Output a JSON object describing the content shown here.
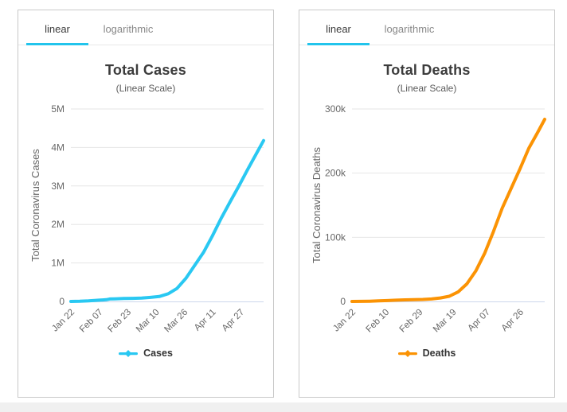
{
  "theme": {
    "accent_color": "#22C4EC",
    "card_border_color": "#c9c9c9",
    "grid_color": "#e6e6e6",
    "axis_line_color": "#ccd6eb",
    "label_color": "#666666",
    "title_color": "#3c3c3c",
    "page_strip_color": "#f0f0f0"
  },
  "tabs": {
    "items": [
      {
        "label": "linear",
        "active": true
      },
      {
        "label": "logarithmic",
        "active": false
      }
    ]
  },
  "chart_data": [
    {
      "type": "line",
      "title": "Total Cases",
      "subtitle": "(Linear Scale)",
      "ylabel": "Total Coronavirus Cases",
      "xlabel": "",
      "series_name": "Cases",
      "legend_marker_icon": "line-diamond-marker-icon",
      "legend_position": "bottom",
      "grid": true,
      "color": "#29C8F2",
      "ylim": [
        0,
        5000000
      ],
      "y_tick_values": [
        0,
        1000000,
        2000000,
        3000000,
        4000000,
        5000000
      ],
      "y_tick_labels": [
        "0",
        "1M",
        "2M",
        "3M",
        "4M",
        "5M"
      ],
      "x_tick_labels": [
        "Jan 22",
        "Feb 07",
        "Feb 23",
        "Mar 10",
        "Mar 26",
        "Apr 11",
        "Apr 27"
      ],
      "x_tick_days": [
        0,
        16,
        32,
        48,
        64,
        80,
        96
      ],
      "x_range_days": [
        0,
        109
      ],
      "points_dates": [
        "Jan 22",
        "Jan 27",
        "Feb 01",
        "Feb 06",
        "Feb 11",
        "Feb 13",
        "Feb 16",
        "Feb 21",
        "Feb 26",
        "Mar 02",
        "Mar 07",
        "Mar 12",
        "Mar 17",
        "Mar 22",
        "Mar 27",
        "Apr 01",
        "Apr 06",
        "Apr 11",
        "Apr 16",
        "Apr 21",
        "Apr 26",
        "May 01",
        "May 06",
        "May 10"
      ],
      "points_days": [
        0,
        5,
        10,
        15,
        20,
        22,
        25,
        30,
        35,
        40,
        45,
        50,
        55,
        60,
        65,
        70,
        75,
        80,
        85,
        90,
        95,
        100,
        105,
        109
      ],
      "points_values": [
        580,
        3200,
        14600,
        31500,
        46000,
        64400,
        69200,
        78000,
        81500,
        87700,
        105800,
        128300,
        199000,
        336000,
        597000,
        936000,
        1273000,
        1699000,
        2160000,
        2582000,
        2995000,
        3427000,
        3846000,
        4180000
      ]
    },
    {
      "type": "line",
      "title": "Total Deaths",
      "subtitle": "(Linear Scale)",
      "ylabel": "Total Coronavirus Deaths",
      "xlabel": "",
      "series_name": "Deaths",
      "legend_marker_icon": "line-diamond-marker-icon",
      "legend_position": "bottom",
      "grid": true,
      "color": "#FB9304",
      "ylim": [
        0,
        300000
      ],
      "y_tick_values": [
        0,
        100000,
        200000,
        300000
      ],
      "y_tick_labels": [
        "0",
        "100k",
        "200k",
        "300k"
      ],
      "x_tick_labels": [
        "Jan 22",
        "Feb 10",
        "Feb 29",
        "Mar 19",
        "Apr 07",
        "Apr 26"
      ],
      "x_tick_days": [
        0,
        19,
        38,
        57,
        76,
        95
      ],
      "x_range_days": [
        0,
        109
      ],
      "points_dates": [
        "Jan 22",
        "Jan 27",
        "Feb 01",
        "Feb 06",
        "Feb 11",
        "Feb 16",
        "Feb 21",
        "Feb 26",
        "Mar 02",
        "Mar 07",
        "Mar 12",
        "Mar 17",
        "Mar 22",
        "Mar 27",
        "Apr 01",
        "Apr 06",
        "Apr 11",
        "Apr 16",
        "Apr 21",
        "Apr 26",
        "May 01",
        "May 06",
        "May 10"
      ],
      "points_days": [
        0,
        5,
        10,
        15,
        20,
        25,
        30,
        35,
        40,
        45,
        50,
        55,
        60,
        65,
        70,
        75,
        80,
        85,
        90,
        95,
        100,
        105,
        109
      ],
      "points_values": [
        17,
        132,
        362,
        910,
        1370,
        2010,
        2460,
        2810,
        3160,
        3830,
        5400,
        8000,
        14700,
        27400,
        47300,
        74800,
        108900,
        145500,
        176000,
        206500,
        238600,
        263300,
        283900
      ]
    }
  ]
}
